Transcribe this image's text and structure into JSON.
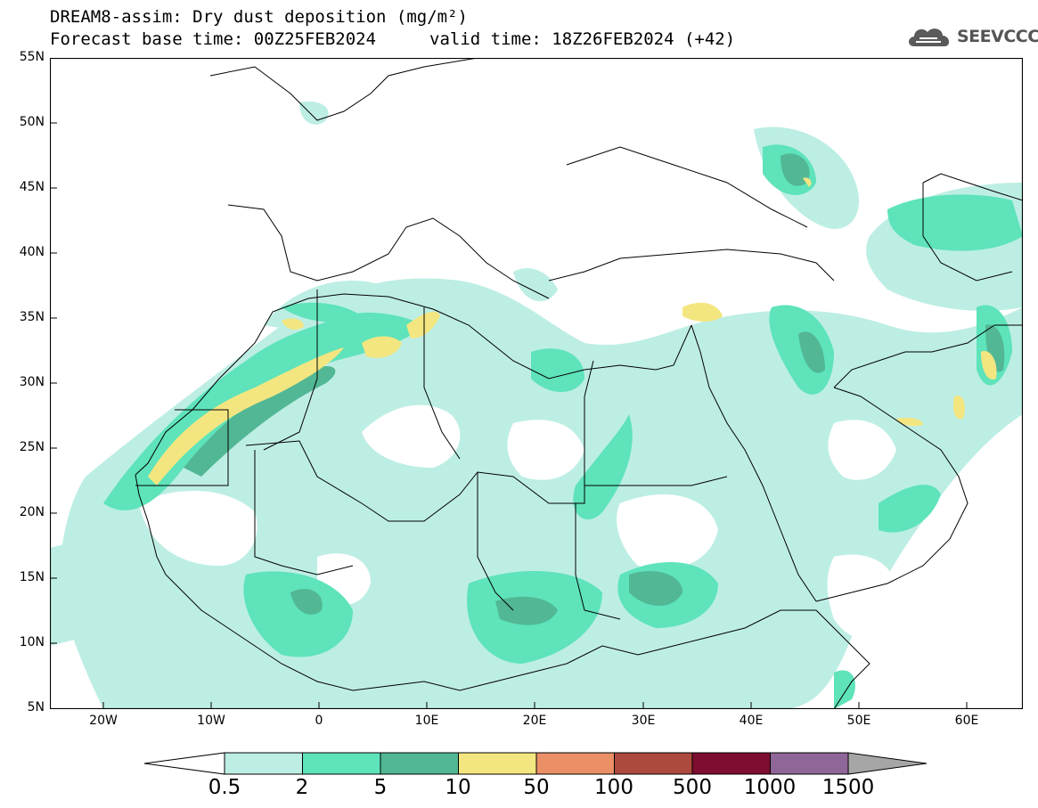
{
  "title": {
    "line1": "DREAM8-assim: Dry dust deposition (mg/m²)",
    "line2": "Forecast base time: 00Z25FEB2024",
    "valid": "valid time: 18Z26FEB2024 (+42)"
  },
  "logo": {
    "text": "SEEVCCC",
    "icon": "cloud-logo-icon"
  },
  "axes": {
    "lat_labels": [
      "55N",
      "50N",
      "45N",
      "40N",
      "35N",
      "30N",
      "25N",
      "20N",
      "15N",
      "10N",
      "5N"
    ],
    "lon_labels": [
      "20W",
      "10W",
      "0",
      "10E",
      "20E",
      "30E",
      "40E",
      "50E",
      "60E"
    ],
    "lat_range": [
      5,
      55
    ],
    "lon_range": [
      -25,
      65
    ]
  },
  "colorbar": {
    "labels": [
      "0.5",
      "2",
      "5",
      "10",
      "50",
      "100",
      "500",
      "1000",
      "1500"
    ],
    "colors": [
      "#bdeee4",
      "#5ee3bb",
      "#52b794",
      "#f3e681",
      "#ea8f66",
      "#ab4a3d",
      "#7e0e30",
      "#8e6697"
    ],
    "over_color": "#a6a6a6",
    "under_color": "#ffffff"
  },
  "colors": {
    "land": "#ffffff",
    "border": "#000000"
  }
}
